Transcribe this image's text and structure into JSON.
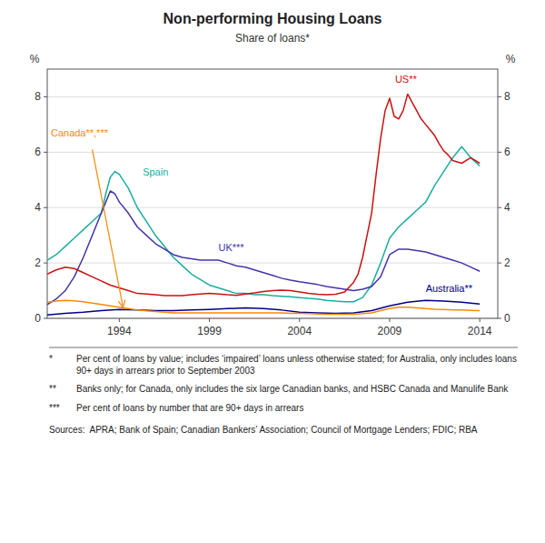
{
  "chart_data": {
    "type": "line",
    "title": "Non-performing Housing Loans",
    "subtitle": "Share of loans*",
    "ylabel": "%",
    "y2label": "%",
    "xlim": [
      1990,
      2015
    ],
    "xticks": [
      1994,
      1999,
      2004,
      2009,
      2014
    ],
    "ylim": [
      0,
      9
    ],
    "yticks": [
      0,
      2,
      4,
      6,
      8
    ],
    "y2lim": [
      0,
      9
    ],
    "y2ticks": [
      0,
      2,
      4,
      6,
      8
    ],
    "grid": true,
    "series": [
      {
        "color": "#1AADA0",
        "x": [
          1990,
          1990.5,
          1991,
          1991.5,
          1992,
          1992.5,
          1993,
          1993.25,
          1993.5,
          1993.75,
          1994,
          1994.5,
          1995,
          1995.5,
          1996,
          1996.5,
          1997,
          1997.5,
          1998,
          1998.5,
          1999,
          1999.5,
          2000,
          2000.5,
          2001,
          2001.5,
          2002,
          2002.5,
          2003,
          2003.5,
          2004,
          2004.5,
          2005,
          2005.5,
          2006,
          2006.5,
          2007,
          2007.5,
          2008,
          2008.5,
          2009,
          2009.5,
          2010,
          2010.5,
          2011,
          2011.5,
          2012,
          2012.5,
          2013,
          2013.5,
          2014
        ],
        "values": [
          2.1,
          2.3,
          2.6,
          2.9,
          3.2,
          3.5,
          3.8,
          4.5,
          5.1,
          5.3,
          5.2,
          4.7,
          4.0,
          3.5,
          3.0,
          2.6,
          2.2,
          1.9,
          1.6,
          1.4,
          1.2,
          1.1,
          1.0,
          0.9,
          0.9,
          0.85,
          0.85,
          0.82,
          0.8,
          0.78,
          0.75,
          0.72,
          0.7,
          0.65,
          0.62,
          0.6,
          0.6,
          0.75,
          1.2,
          2.0,
          2.9,
          3.3,
          3.6,
          3.9,
          4.2,
          4.8,
          5.3,
          5.8,
          6.2,
          5.8,
          5.5
        ]
      },
      {
        "color": "#4433AA",
        "x": [
          1990,
          1990.5,
          1991,
          1991.5,
          1992,
          1992.5,
          1993,
          1993.25,
          1993.5,
          1993.75,
          1994,
          1994.5,
          1995,
          1995.5,
          1996,
          1996.5,
          1997,
          1997.5,
          1998,
          1998.5,
          1999,
          1999.5,
          2000,
          2000.5,
          2001,
          2001.5,
          2002,
          2002.5,
          2003,
          2003.5,
          2004,
          2004.5,
          2005,
          2005.5,
          2006,
          2006.5,
          2007,
          2007.5,
          2008,
          2008.5,
          2009,
          2009.5,
          2010,
          2010.5,
          2011,
          2011.5,
          2012,
          2012.5,
          2013,
          2013.5,
          2014
        ],
        "values": [
          0.5,
          0.7,
          1.0,
          1.5,
          2.2,
          3.0,
          3.8,
          4.2,
          4.6,
          4.5,
          4.2,
          3.8,
          3.3,
          3.0,
          2.7,
          2.5,
          2.3,
          2.2,
          2.15,
          2.1,
          2.1,
          2.1,
          2.0,
          1.9,
          1.85,
          1.75,
          1.65,
          1.55,
          1.45,
          1.38,
          1.32,
          1.27,
          1.22,
          1.15,
          1.1,
          1.05,
          1.0,
          1.05,
          1.15,
          1.5,
          2.3,
          2.5,
          2.5,
          2.45,
          2.4,
          2.3,
          2.2,
          2.1,
          2.0,
          1.85,
          1.7
        ]
      },
      {
        "color": "#CC1111",
        "x": [
          1990,
          1990.5,
          1991,
          1991.5,
          1992,
          1992.5,
          1993,
          1993.5,
          1994,
          1994.5,
          1995,
          1995.5,
          1996,
          1996.5,
          1997,
          1997.5,
          1998,
          1998.5,
          1999,
          1999.5,
          2000,
          2000.5,
          2001,
          2001.5,
          2002,
          2002.5,
          2003,
          2003.5,
          2004,
          2004.5,
          2005,
          2005.5,
          2006,
          2006.5,
          2007,
          2007.25,
          2007.5,
          2007.75,
          2008,
          2008.25,
          2008.5,
          2008.75,
          2009,
          2009.25,
          2009.5,
          2009.75,
          2010,
          2010.25,
          2010.5,
          2010.75,
          2011,
          2011.25,
          2011.5,
          2011.75,
          2012,
          2012.25,
          2012.5,
          2012.75,
          2013,
          2013.25,
          2013.5,
          2013.75,
          2014
        ],
        "values": [
          1.6,
          1.75,
          1.85,
          1.8,
          1.65,
          1.5,
          1.35,
          1.2,
          1.1,
          1.0,
          0.9,
          0.88,
          0.85,
          0.82,
          0.82,
          0.82,
          0.85,
          0.88,
          0.9,
          0.88,
          0.85,
          0.83,
          0.88,
          0.92,
          0.97,
          1.0,
          1.02,
          1.0,
          0.95,
          0.9,
          0.87,
          0.85,
          0.87,
          0.95,
          1.3,
          1.6,
          2.2,
          3.0,
          3.8,
          5.2,
          6.5,
          7.5,
          7.95,
          7.3,
          7.2,
          7.5,
          8.1,
          7.8,
          7.5,
          7.2,
          7.0,
          6.8,
          6.6,
          6.3,
          6.05,
          5.9,
          5.7,
          5.65,
          5.6,
          5.7,
          5.8,
          5.7,
          5.6
        ]
      },
      {
        "color": "#000088",
        "x": [
          1990,
          1991,
          1992,
          1993,
          1994,
          1995,
          1996,
          1997,
          1998,
          1999,
          2000,
          2001,
          2002,
          2003,
          2004,
          2005,
          2006,
          2007,
          2008,
          2009,
          2010,
          2011,
          2012,
          2013,
          2014
        ],
        "values": [
          0.12,
          0.18,
          0.22,
          0.28,
          0.32,
          0.3,
          0.28,
          0.28,
          0.3,
          0.32,
          0.35,
          0.38,
          0.35,
          0.3,
          0.22,
          0.2,
          0.18,
          0.2,
          0.28,
          0.45,
          0.58,
          0.65,
          0.62,
          0.58,
          0.52
        ]
      },
      {
        "color": "#FF8800",
        "x": [
          1990,
          1990.5,
          1991,
          1991.5,
          1992,
          1992.5,
          1993,
          1993.5,
          1994,
          1994.5,
          1995,
          1995.5,
          1996,
          1996.5,
          1997,
          1997.5,
          1998,
          1998.5,
          1999,
          1999.5,
          2000,
          2000.5,
          2001,
          2001.5,
          2002,
          2002.5,
          2003,
          2003.5,
          2004,
          2004.5,
          2005,
          2005.5,
          2006,
          2006.5,
          2007,
          2007.5,
          2008,
          2008.5,
          2009,
          2009.5,
          2010,
          2010.5,
          2011,
          2011.5,
          2012,
          2012.5,
          2013,
          2013.5,
          2014
        ],
        "values": [
          0.58,
          0.62,
          0.65,
          0.63,
          0.6,
          0.55,
          0.5,
          0.45,
          0.4,
          0.35,
          0.3,
          0.27,
          0.25,
          0.22,
          0.2,
          0.2,
          0.2,
          0.2,
          0.2,
          0.2,
          0.2,
          0.2,
          0.2,
          0.2,
          0.2,
          0.2,
          0.2,
          0.18,
          0.18,
          0.17,
          0.16,
          0.15,
          0.15,
          0.15,
          0.15,
          0.17,
          0.2,
          0.28,
          0.35,
          0.4,
          0.4,
          0.38,
          0.35,
          0.33,
          0.32,
          0.3,
          0.3,
          0.29,
          0.28
        ]
      }
    ],
    "annotations": [
      {
        "text": "Canada**,***",
        "x": 1990.2,
        "y": 6.5,
        "color": "#FF8800"
      },
      {
        "text": "Spain",
        "x": 1995.3,
        "y": 5.1,
        "color": "#1AADA0"
      },
      {
        "text": "UK***",
        "x": 1999.5,
        "y": 2.35,
        "color": "#4433AA"
      },
      {
        "text": "US**",
        "x": 2009.3,
        "y": 8.45,
        "color": "#CC1111"
      },
      {
        "text": "Australia**",
        "x": 2011.0,
        "y": 0.88,
        "color": "#000088"
      }
    ],
    "arrow": {
      "x_start": 1992.5,
      "y_start": 6.1,
      "x_end": 1994.2,
      "y_end": 0.42,
      "color": "#FF8800"
    },
    "footnotes": [
      {
        "mark": "*",
        "text": "Per cent of loans by value; includes ‘impaired’ loans unless otherwise stated; for Australia, only includes loans 90+ days in arrears prior to September 2003"
      },
      {
        "mark": "**",
        "text": "Banks only; for Canada, only includes the six large Canadian banks, and HSBC Canada and Manulife Bank"
      },
      {
        "mark": "***",
        "text": "Per cent of loans by number that are 90+ days in arrears"
      }
    ],
    "sources": "Sources:  APRA; Bank of Spain; Canadian Bankers’ Association; Council of Mortgage Lenders; FDIC; RBA"
  }
}
